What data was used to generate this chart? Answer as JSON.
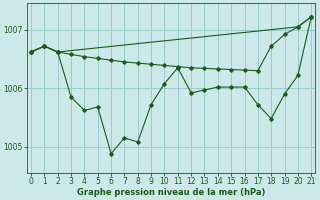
{
  "xlabel": "Graphe pression niveau de la mer (hPa)",
  "background_color": "#cce8e8",
  "grid_color": "#99cccc",
  "line_color": "#1a5c1a",
  "xlim": [
    -0.3,
    21.3
  ],
  "ylim": [
    1004.55,
    1007.45
  ],
  "xticks": [
    0,
    1,
    2,
    3,
    4,
    5,
    6,
    7,
    8,
    9,
    10,
    11,
    12,
    13,
    14,
    15,
    16,
    17,
    18,
    19,
    20,
    21
  ],
  "yticks": [
    1005,
    1006,
    1007
  ],
  "series": [
    {
      "x": [
        0,
        1,
        2,
        20,
        21
      ],
      "y": [
        1006.62,
        1006.72,
        1006.62,
        1007.05,
        1007.22
      ]
    },
    {
      "x": [
        0,
        1,
        2,
        3,
        4,
        5,
        6,
        7,
        8,
        9,
        10,
        11,
        12,
        13,
        14,
        15,
        16,
        17,
        18,
        19,
        20,
        21
      ],
      "y": [
        1006.62,
        1006.72,
        1006.62,
        1006.58,
        1006.54,
        1006.51,
        1006.48,
        1006.45,
        1006.43,
        1006.41,
        1006.39,
        1006.37,
        1006.35,
        1006.34,
        1006.33,
        1006.32,
        1006.31,
        1006.3,
        1006.72,
        1006.92,
        1007.05,
        1007.22
      ]
    },
    {
      "x": [
        0,
        1,
        2,
        3,
        4,
        5,
        6,
        7,
        8,
        9,
        10,
        11,
        12,
        13,
        14,
        15,
        16,
        17,
        18,
        19,
        20,
        21
      ],
      "y": [
        1006.62,
        1006.72,
        1006.62,
        1005.85,
        1005.62,
        1005.68,
        1004.88,
        1005.15,
        1005.08,
        1005.72,
        1006.08,
        1006.35,
        1005.92,
        1005.97,
        1006.02,
        1006.02,
        1006.02,
        1005.72,
        1005.48,
        1005.9,
        1006.22,
        1007.22
      ]
    }
  ]
}
